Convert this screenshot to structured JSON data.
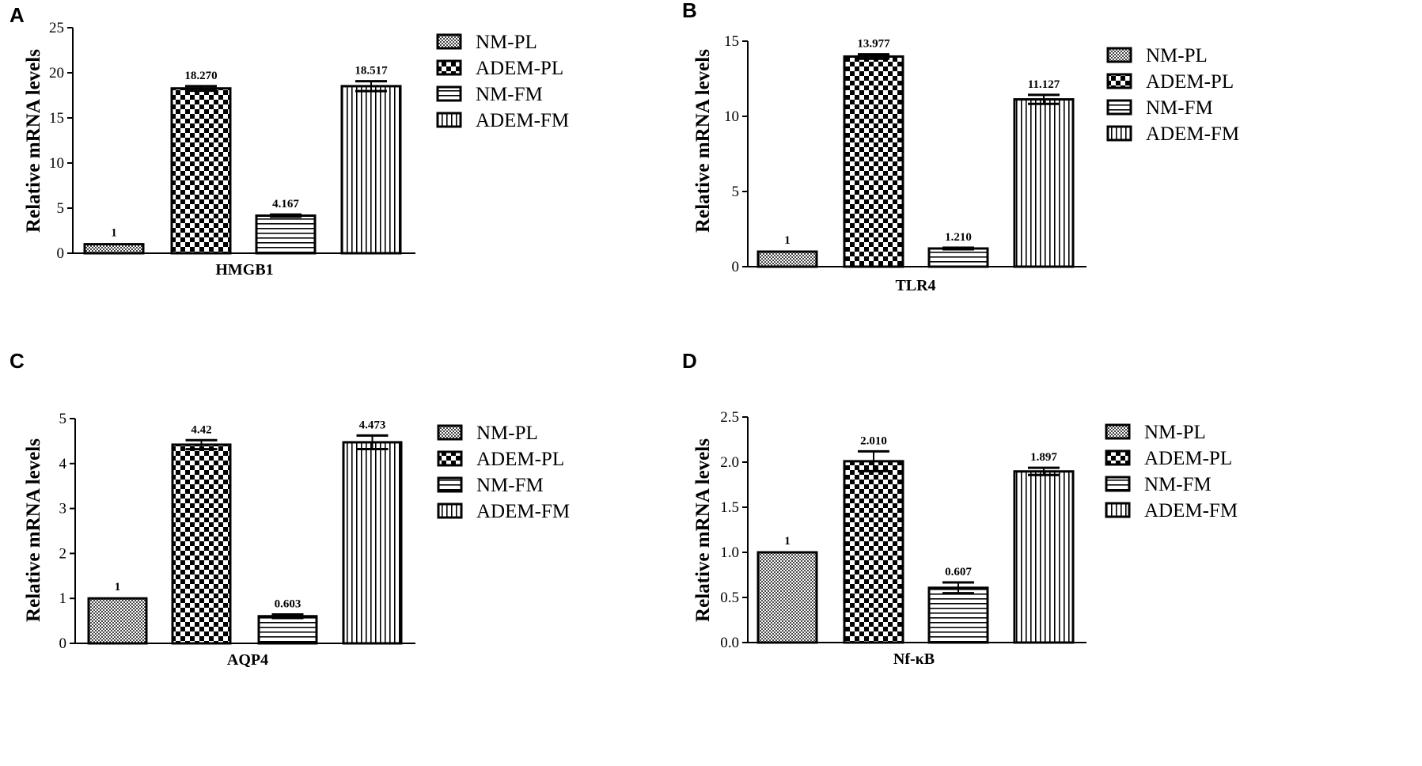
{
  "chart_data": [
    {
      "type": "bar",
      "panel": "A",
      "xlabel": "HMGB1",
      "ylabel": "Relative mRNA levels",
      "ylim": [
        0,
        25
      ],
      "yticks": [
        "0",
        "5",
        "10",
        "15",
        "20",
        "25"
      ],
      "categories": [
        "NM-PL",
        "ADEM-PL",
        "NM-FM",
        "ADEM-FM"
      ],
      "values": [
        1,
        18.27,
        4.167,
        18.517
      ],
      "errors": [
        0,
        0.25,
        0.12,
        0.55
      ],
      "data_labels": [
        "1",
        "18.270",
        "4.167",
        "18.517"
      ],
      "legend_position": "right"
    },
    {
      "type": "bar",
      "panel": "B",
      "xlabel": "TLR4",
      "ylabel": "Relative mRNA levels",
      "ylim": [
        0,
        15
      ],
      "yticks": [
        "0",
        "5",
        "10",
        "15"
      ],
      "categories": [
        "NM-PL",
        "ADEM-PL",
        "NM-FM",
        "ADEM-FM"
      ],
      "values": [
        1,
        13.977,
        1.21,
        11.127
      ],
      "errors": [
        0,
        0.15,
        0.05,
        0.3
      ],
      "data_labels": [
        "1",
        "13.977",
        "1.210",
        "11.127"
      ],
      "legend_position": "right"
    },
    {
      "type": "bar",
      "panel": "C",
      "xlabel": "AQP4",
      "ylabel": "Relative mRNA levels",
      "ylim": [
        0,
        5
      ],
      "yticks": [
        "0",
        "1",
        "2",
        "3",
        "4",
        "5"
      ],
      "categories": [
        "NM-PL",
        "ADEM-PL",
        "NM-FM",
        "ADEM-FM"
      ],
      "values": [
        1,
        4.42,
        0.603,
        4.473
      ],
      "errors": [
        0,
        0.1,
        0.04,
        0.15
      ],
      "data_labels": [
        "1",
        "4.42",
        "0.603",
        "4.473"
      ],
      "legend_position": "right"
    },
    {
      "type": "bar",
      "panel": "D",
      "xlabel": "Nf-κB",
      "ylabel": "Relative mRNA levels",
      "ylim": [
        0,
        2.5
      ],
      "yticks": [
        "0.0",
        "0.5",
        "1.0",
        "1.5",
        "2.0",
        "2.5"
      ],
      "categories": [
        "NM-PL",
        "ADEM-PL",
        "NM-FM",
        "ADEM-FM"
      ],
      "values": [
        1,
        2.01,
        0.607,
        1.897
      ],
      "errors": [
        0,
        0.11,
        0.06,
        0.04
      ],
      "data_labels": [
        "1",
        "2.010",
        "0.607",
        "1.897"
      ],
      "legend_position": "right"
    }
  ],
  "legend": [
    "NM-PL",
    "ADEM-PL",
    "NM-FM",
    "ADEM-FM"
  ]
}
